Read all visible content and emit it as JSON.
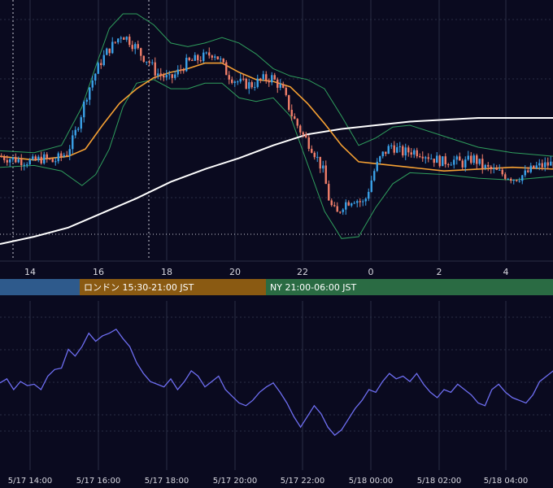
{
  "colors": {
    "background": "#0a0a1f",
    "grid": "#2a2f45",
    "candle_up": "#3aa1e8",
    "candle_down": "#f07e6a",
    "ma_short": "#f5a033",
    "ma_long": "#ffffff",
    "bollinger": "#2f9e5d",
    "oscillator": "#6e6ef2",
    "tick_text": "#d8d8e0",
    "session_asia": "#2e5a8c",
    "session_london": "#8a5a12",
    "session_ny": "#2a6b43"
  },
  "main_axis_ticks": [
    "14",
    "16",
    "18",
    "20",
    "22",
    "0",
    "2",
    "4"
  ],
  "sessions": [
    {
      "label": ""
    },
    {
      "label": "ロンドン 15:30-21:00 JST"
    },
    {
      "label": "NY 21:00-06:00 JST"
    }
  ],
  "bottom_axis_ticks": [
    "5/17 14:00",
    "5/17 16:00",
    "5/17 18:00",
    "5/17 20:00",
    "5/17 22:00",
    "5/18 00:00",
    "5/18 02:00",
    "5/18 04:00"
  ],
  "chart_data": [
    {
      "type": "candlestick",
      "title": "",
      "x_hours": [
        13,
        17.5
      ],
      "series": [
        {
          "name": "",
          "kind": "candles",
          "close_path": [
            [
              13.0,
              0.18
            ],
            [
              13.3,
              0.17
            ],
            [
              13.6,
              0.16
            ],
            [
              14.0,
              0.15
            ],
            [
              14.3,
              0.17
            ],
            [
              14.6,
              0.15
            ],
            [
              15.0,
              0.2
            ],
            [
              15.2,
              0.28
            ],
            [
              15.4,
              0.4
            ],
            [
              15.6,
              0.53
            ],
            [
              15.8,
              0.62
            ],
            [
              16.0,
              0.7
            ],
            [
              16.2,
              0.76
            ],
            [
              16.4,
              0.8
            ],
            [
              16.6,
              0.85
            ],
            [
              16.8,
              0.82
            ],
            [
              17.0,
              0.78
            ],
            [
              17.2,
              0.73
            ],
            [
              17.4,
              0.7
            ],
            [
              17.6,
              0.64
            ],
            [
              17.8,
              0.62
            ],
            [
              18.0,
              0.6
            ],
            [
              18.2,
              0.63
            ],
            [
              18.5,
              0.69
            ],
            [
              18.8,
              0.71
            ],
            [
              19.1,
              0.73
            ],
            [
              19.3,
              0.75
            ],
            [
              19.5,
              0.7
            ],
            [
              19.7,
              0.63
            ],
            [
              19.9,
              0.6
            ],
            [
              20.1,
              0.58
            ],
            [
              20.4,
              0.57
            ],
            [
              20.7,
              0.6
            ],
            [
              21.0,
              0.61
            ],
            [
              21.3,
              0.55
            ],
            [
              21.6,
              0.4
            ],
            [
              21.9,
              0.3
            ],
            [
              22.2,
              0.22
            ],
            [
              22.5,
              0.1
            ],
            [
              22.7,
              -0.08
            ],
            [
              22.9,
              -0.14
            ],
            [
              23.1,
              -0.08
            ],
            [
              23.4,
              -0.05
            ],
            [
              23.7,
              -0.08
            ],
            [
              24.0,
              0.1
            ],
            [
              24.2,
              0.18
            ],
            [
              24.5,
              0.24
            ],
            [
              24.8,
              0.2
            ],
            [
              25.1,
              0.21
            ],
            [
              25.4,
              0.2
            ],
            [
              25.7,
              0.17
            ],
            [
              26.0,
              0.15
            ],
            [
              26.3,
              0.16
            ],
            [
              26.6,
              0.14
            ],
            [
              26.9,
              0.17
            ],
            [
              27.2,
              0.12
            ],
            [
              27.5,
              0.1
            ],
            [
              27.8,
              0.08
            ],
            [
              28.1,
              0.06
            ],
            [
              28.4,
              0.08
            ],
            [
              28.7,
              0.12
            ],
            [
              29.2,
              0.14
            ]
          ],
          "y_range": [
            -0.3,
            1.0
          ]
        },
        {
          "name": "",
          "kind": "moving_average_short",
          "points": [
            [
              13.0,
              0.18
            ],
            [
              14.0,
              0.16
            ],
            [
              15.0,
              0.18
            ],
            [
              15.5,
              0.22
            ],
            [
              16.0,
              0.35
            ],
            [
              16.5,
              0.47
            ],
            [
              17.0,
              0.55
            ],
            [
              17.5,
              0.61
            ],
            [
              18.0,
              0.64
            ],
            [
              18.5,
              0.66
            ],
            [
              19.0,
              0.69
            ],
            [
              19.5,
              0.69
            ],
            [
              20.0,
              0.64
            ],
            [
              20.5,
              0.6
            ],
            [
              21.0,
              0.59
            ],
            [
              21.5,
              0.56
            ],
            [
              22.0,
              0.47
            ],
            [
              22.5,
              0.36
            ],
            [
              23.0,
              0.24
            ],
            [
              23.5,
              0.15
            ],
            [
              24.0,
              0.14
            ],
            [
              24.5,
              0.13
            ],
            [
              25.0,
              0.12
            ],
            [
              26.0,
              0.1
            ],
            [
              27.0,
              0.11
            ],
            [
              28.0,
              0.12
            ],
            [
              29.2,
              0.11
            ]
          ]
        },
        {
          "name": "",
          "kind": "moving_average_long",
          "points": [
            [
              13.0,
              -0.3
            ],
            [
              14.0,
              -0.26
            ],
            [
              15.0,
              -0.21
            ],
            [
              16.0,
              -0.13
            ],
            [
              17.0,
              -0.05
            ],
            [
              18.0,
              0.04
            ],
            [
              19.0,
              0.11
            ],
            [
              20.0,
              0.17
            ],
            [
              21.0,
              0.24
            ],
            [
              22.0,
              0.3
            ],
            [
              23.0,
              0.33
            ],
            [
              24.0,
              0.35
            ],
            [
              25.0,
              0.37
            ],
            [
              26.0,
              0.38
            ],
            [
              27.0,
              0.39
            ],
            [
              28.0,
              0.39
            ],
            [
              29.2,
              0.39
            ]
          ]
        },
        {
          "name": "",
          "kind": "bollinger_upper",
          "points": [
            [
              13.0,
              0.21
            ],
            [
              14.0,
              0.2
            ],
            [
              14.8,
              0.24
            ],
            [
              15.4,
              0.45
            ],
            [
              15.8,
              0.67
            ],
            [
              16.2,
              0.88
            ],
            [
              16.6,
              0.96
            ],
            [
              17.0,
              0.96
            ],
            [
              17.5,
              0.9
            ],
            [
              18.0,
              0.8
            ],
            [
              18.5,
              0.78
            ],
            [
              19.0,
              0.8
            ],
            [
              19.5,
              0.83
            ],
            [
              20.0,
              0.8
            ],
            [
              20.5,
              0.74
            ],
            [
              21.0,
              0.66
            ],
            [
              21.5,
              0.62
            ],
            [
              22.0,
              0.6
            ],
            [
              22.5,
              0.55
            ],
            [
              23.0,
              0.4
            ],
            [
              23.5,
              0.24
            ],
            [
              24.0,
              0.28
            ],
            [
              24.5,
              0.34
            ],
            [
              25.0,
              0.35
            ],
            [
              26.0,
              0.29
            ],
            [
              27.0,
              0.23
            ],
            [
              28.0,
              0.2
            ],
            [
              29.2,
              0.18
            ]
          ]
        },
        {
          "name": "",
          "kind": "bollinger_lower",
          "points": [
            [
              13.0,
              0.12
            ],
            [
              14.0,
              0.13
            ],
            [
              14.8,
              0.1
            ],
            [
              15.4,
              0.02
            ],
            [
              15.8,
              0.08
            ],
            [
              16.2,
              0.22
            ],
            [
              16.6,
              0.45
            ],
            [
              17.0,
              0.58
            ],
            [
              17.5,
              0.6
            ],
            [
              18.0,
              0.55
            ],
            [
              18.5,
              0.55
            ],
            [
              19.0,
              0.58
            ],
            [
              19.5,
              0.58
            ],
            [
              20.0,
              0.5
            ],
            [
              20.5,
              0.48
            ],
            [
              21.0,
              0.5
            ],
            [
              21.5,
              0.4
            ],
            [
              22.0,
              0.14
            ],
            [
              22.5,
              -0.12
            ],
            [
              23.0,
              -0.27
            ],
            [
              23.5,
              -0.26
            ],
            [
              24.0,
              -0.1
            ],
            [
              24.5,
              0.03
            ],
            [
              25.0,
              0.09
            ],
            [
              26.0,
              0.08
            ],
            [
              27.0,
              0.06
            ],
            [
              28.0,
              0.05
            ],
            [
              29.2,
              0.07
            ]
          ]
        }
      ],
      "xlabel": "",
      "ylabel": "",
      "grid": true
    },
    {
      "type": "line",
      "title": "",
      "series": [
        {
          "name": "",
          "points": [
            [
              13.0,
              0.45
            ],
            [
              13.2,
              0.48
            ],
            [
              13.4,
              0.4
            ],
            [
              13.6,
              0.46
            ],
            [
              13.8,
              0.43
            ],
            [
              14.0,
              0.44
            ],
            [
              14.2,
              0.4
            ],
            [
              14.4,
              0.5
            ],
            [
              14.6,
              0.55
            ],
            [
              14.8,
              0.56
            ],
            [
              15.0,
              0.7
            ],
            [
              15.2,
              0.65
            ],
            [
              15.4,
              0.72
            ],
            [
              15.6,
              0.82
            ],
            [
              15.8,
              0.76
            ],
            [
              16.0,
              0.8
            ],
            [
              16.2,
              0.82
            ],
            [
              16.4,
              0.85
            ],
            [
              16.6,
              0.78
            ],
            [
              16.8,
              0.72
            ],
            [
              17.0,
              0.6
            ],
            [
              17.2,
              0.52
            ],
            [
              17.4,
              0.46
            ],
            [
              17.6,
              0.44
            ],
            [
              17.8,
              0.42
            ],
            [
              18.0,
              0.48
            ],
            [
              18.2,
              0.4
            ],
            [
              18.4,
              0.46
            ],
            [
              18.6,
              0.54
            ],
            [
              18.8,
              0.5
            ],
            [
              19.0,
              0.42
            ],
            [
              19.2,
              0.46
            ],
            [
              19.4,
              0.5
            ],
            [
              19.6,
              0.4
            ],
            [
              19.8,
              0.35
            ],
            [
              20.0,
              0.3
            ],
            [
              20.2,
              0.28
            ],
            [
              20.4,
              0.32
            ],
            [
              20.6,
              0.38
            ],
            [
              20.8,
              0.42
            ],
            [
              21.0,
              0.45
            ],
            [
              21.2,
              0.38
            ],
            [
              21.4,
              0.3
            ],
            [
              21.6,
              0.2
            ],
            [
              21.8,
              0.12
            ],
            [
              22.0,
              0.2
            ],
            [
              22.2,
              0.28
            ],
            [
              22.4,
              0.22
            ],
            [
              22.6,
              0.12
            ],
            [
              22.8,
              0.06
            ],
            [
              23.0,
              0.1
            ],
            [
              23.2,
              0.18
            ],
            [
              23.4,
              0.26
            ],
            [
              23.6,
              0.32
            ],
            [
              23.8,
              0.4
            ],
            [
              24.0,
              0.38
            ],
            [
              24.2,
              0.46
            ],
            [
              24.4,
              0.52
            ],
            [
              24.6,
              0.48
            ],
            [
              24.8,
              0.5
            ],
            [
              25.0,
              0.46
            ],
            [
              25.2,
              0.52
            ],
            [
              25.4,
              0.44
            ],
            [
              25.6,
              0.38
            ],
            [
              25.8,
              0.34
            ],
            [
              26.0,
              0.4
            ],
            [
              26.2,
              0.38
            ],
            [
              26.4,
              0.44
            ],
            [
              26.6,
              0.4
            ],
            [
              26.8,
              0.36
            ],
            [
              27.0,
              0.3
            ],
            [
              27.2,
              0.28
            ],
            [
              27.4,
              0.4
            ],
            [
              27.6,
              0.44
            ],
            [
              27.8,
              0.38
            ],
            [
              28.0,
              0.34
            ],
            [
              28.2,
              0.32
            ],
            [
              28.4,
              0.3
            ],
            [
              28.6,
              0.36
            ],
            [
              28.8,
              0.46
            ],
            [
              29.0,
              0.5
            ],
            [
              29.2,
              0.54
            ]
          ]
        }
      ],
      "y_range": [
        0,
        1
      ],
      "xlabel": "",
      "ylabel": "",
      "grid": true
    }
  ]
}
